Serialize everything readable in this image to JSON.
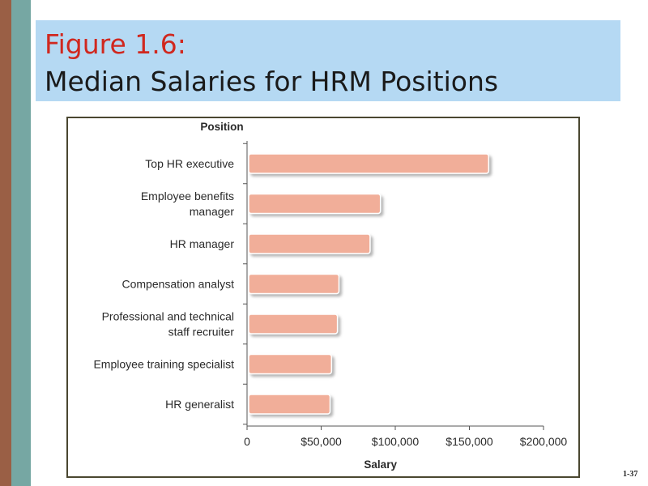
{
  "slide": {
    "title_line1": "Figure 1.6:",
    "title_line2": "Median Salaries for HRM Positions",
    "page_number": "1-37"
  },
  "colors": {
    "title_background": "#b5d9f3",
    "title_accent": "#d0281f",
    "bar_fill": "#f1ae99",
    "left_strip_brown": "#9a5f45",
    "left_strip_teal": "#76a7a3"
  },
  "chart_data": {
    "type": "bar",
    "orientation": "horizontal",
    "title": "",
    "ylabel": "Position",
    "xlabel": "Salary",
    "categories": [
      [
        "Top HR executive"
      ],
      [
        "Employee benefits",
        "manager"
      ],
      [
        "HR manager"
      ],
      [
        "Compensation analyst"
      ],
      [
        "Professional and technical",
        "staff recruiter"
      ],
      [
        "Employee training specialist"
      ],
      [
        "HR generalist"
      ]
    ],
    "values": [
      163000,
      90000,
      83000,
      62000,
      61000,
      57000,
      56000
    ],
    "xlim": [
      0,
      200000
    ],
    "x_ticks": [
      0,
      50000,
      100000,
      150000,
      200000
    ],
    "x_tick_labels": [
      "0",
      "$50,000",
      "$100,000",
      "$150,000",
      "$200,000"
    ],
    "grid": false,
    "legend": "none"
  }
}
